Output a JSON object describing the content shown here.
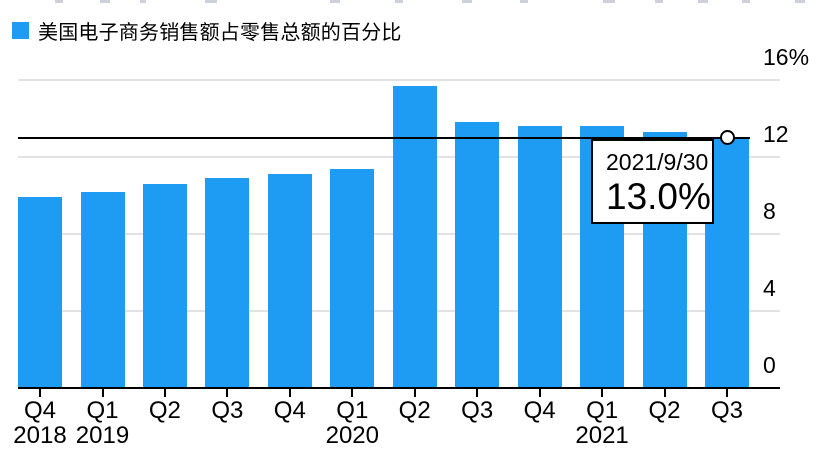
{
  "legend": {
    "label": "美国电子商务销售额占零售总额的百分比",
    "swatch_color": "#1e9bf2"
  },
  "tooltip": {
    "date": "2021/9/30",
    "value": "13.0%"
  },
  "chart_data": {
    "type": "bar",
    "title": "",
    "categories": [
      "Q4 2018",
      "Q1 2019",
      "Q2 2019",
      "Q3 2019",
      "Q4 2019",
      "Q1 2020",
      "Q2 2020",
      "Q3 2020",
      "Q4 2020",
      "Q1 2021",
      "Q2 2021",
      "Q3 2021"
    ],
    "quarter_labels": [
      "Q4",
      "Q1",
      "Q2",
      "Q3",
      "Q4",
      "Q1",
      "Q2",
      "Q3",
      "Q4",
      "Q1",
      "Q2",
      "Q3"
    ],
    "year_marks": [
      {
        "index": 0,
        "label": "2018"
      },
      {
        "index": 1,
        "label": "2019"
      },
      {
        "index": 5,
        "label": "2020"
      },
      {
        "index": 9,
        "label": "2021"
      }
    ],
    "values": [
      9.9,
      10.2,
      10.6,
      10.9,
      11.1,
      11.4,
      15.7,
      13.8,
      13.6,
      13.6,
      13.3,
      13.0
    ],
    "unit": "%",
    "ylim": [
      0,
      16
    ],
    "yticks": [
      {
        "value": 16,
        "label": "16%"
      },
      {
        "value": 12,
        "label": "12"
      },
      {
        "value": 8,
        "label": "8"
      },
      {
        "value": 4,
        "label": "4"
      },
      {
        "value": 0,
        "label": "0"
      }
    ],
    "grid": true,
    "legend_position": "top-left",
    "yaxis_side": "right",
    "bar_color": "#1e9bf2",
    "gridline_color": "#e2e2e2",
    "reference_line": {
      "value": 13.0,
      "color": "#000000"
    },
    "highlight": {
      "index": 11,
      "marker": "open-circle"
    }
  }
}
